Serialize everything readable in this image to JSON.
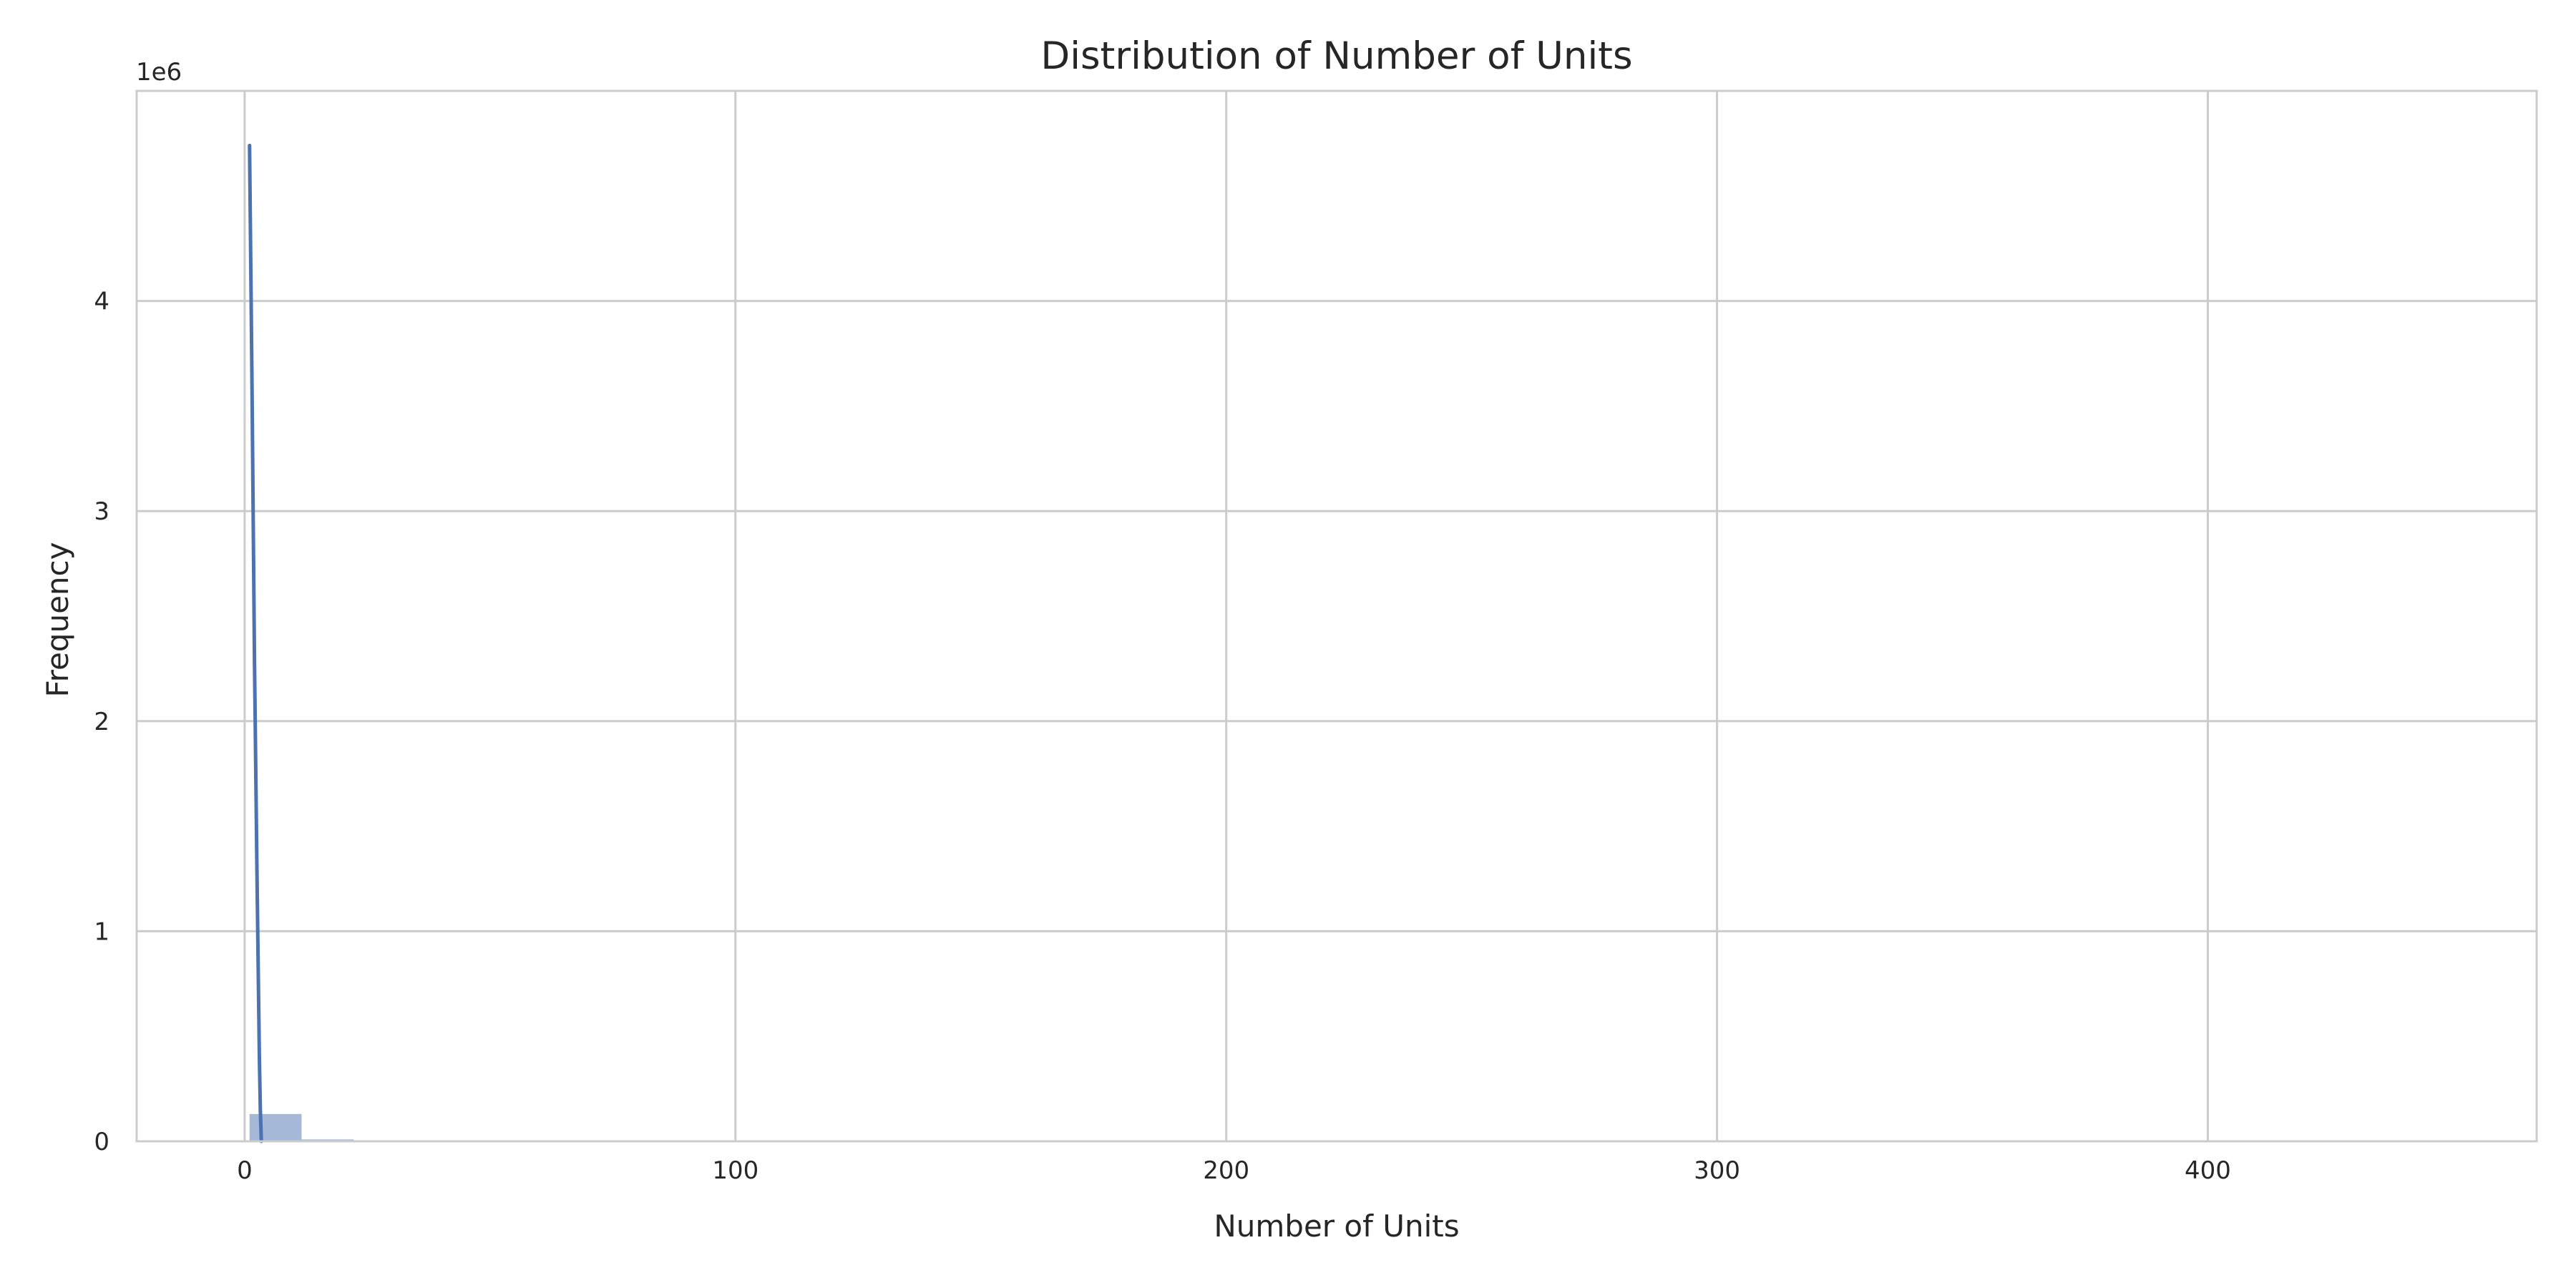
{
  "chart_data": {
    "type": "bar",
    "title": "Distribution of Number of Units",
    "xlabel": "Number of Units",
    "ylabel": "Frequency",
    "y_offset_label": "1e6",
    "xlim": [
      -22,
      467
    ],
    "ylim": [
      0,
      5000000
    ],
    "x_ticks": [
      0,
      100,
      200,
      300,
      400
    ],
    "x_tick_labels": [
      "0",
      "100",
      "200",
      "300",
      "400"
    ],
    "y_ticks": [
      0,
      1000000,
      2000000,
      3000000,
      4000000
    ],
    "y_tick_labels": [
      "0",
      "1",
      "2",
      "3",
      "4"
    ],
    "grid": true,
    "legend": "none",
    "histogram": {
      "bin_width": 10.6,
      "bins": [
        {
          "x0": 1,
          "x1": 11.6,
          "count": 130000
        },
        {
          "x0": 11.6,
          "x1": 22.2,
          "count": 9000
        },
        {
          "x0": 22.2,
          "x1": 445,
          "count": 4000
        }
      ],
      "color": "#4c72b0",
      "opacity": 0.5
    },
    "kde_line": {
      "x": [
        1,
        1.5,
        2,
        2.5,
        3,
        3.2,
        3.4
      ],
      "y": [
        4740000,
        3600000,
        2300000,
        1300000,
        400000,
        150000,
        0
      ],
      "color": "#4c72b0"
    }
  }
}
